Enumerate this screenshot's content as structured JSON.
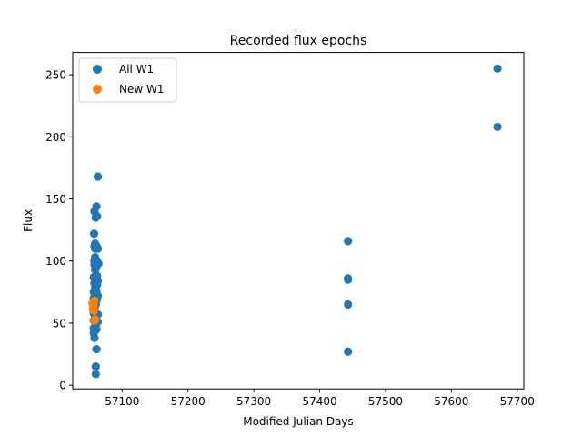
{
  "chart_data": {
    "type": "scatter",
    "title": "Recorded flux epochs",
    "xlabel": "Modified Julian Days",
    "ylabel": "Flux",
    "xlim": [
      57025,
      57710
    ],
    "ylim": [
      -3,
      268
    ],
    "xticks": [
      57100,
      57200,
      57300,
      57400,
      57500,
      57600,
      57700
    ],
    "yticks": [
      0,
      50,
      100,
      150,
      200,
      250
    ],
    "grid": false,
    "legend_position": "top-left",
    "series": [
      {
        "name": "All W1",
        "color": "#1f77b4",
        "points": [
          [
            57057,
            87
          ],
          [
            57057,
            75
          ],
          [
            57057,
            70
          ],
          [
            57057,
            64
          ],
          [
            57057,
            58
          ],
          [
            57057,
            52
          ],
          [
            57057,
            46
          ],
          [
            57057,
            42
          ],
          [
            57057.5,
            122
          ],
          [
            57058,
            140
          ],
          [
            57058,
            112
          ],
          [
            57058,
            100
          ],
          [
            57058,
            97
          ],
          [
            57058,
            82
          ],
          [
            57058,
            62
          ],
          [
            57058,
            38
          ],
          [
            57059,
            114
          ],
          [
            57059,
            110
          ],
          [
            57059,
            103
          ],
          [
            57059,
            93
          ],
          [
            57059,
            85
          ],
          [
            57059,
            78
          ],
          [
            57059,
            72
          ],
          [
            57059,
            55
          ],
          [
            57060,
            135
          ],
          [
            57060,
            99
          ],
          [
            57060,
            88
          ],
          [
            57060,
            75
          ],
          [
            57060,
            65
          ],
          [
            57060,
            48
          ],
          [
            57060,
            9
          ],
          [
            57060,
            15
          ],
          [
            57061,
            144
          ],
          [
            57061,
            112
          ],
          [
            57061,
            95
          ],
          [
            57061,
            83
          ],
          [
            57061,
            76
          ],
          [
            57061,
            68
          ],
          [
            57061,
            45
          ],
          [
            57061,
            29
          ],
          [
            57062,
            136
          ],
          [
            57062,
            111
          ],
          [
            57062,
            100
          ],
          [
            57062,
            88
          ],
          [
            57062,
            81
          ],
          [
            57062,
            70
          ],
          [
            57063,
            168
          ],
          [
            57063,
            110
          ],
          [
            57063,
            98
          ],
          [
            57063,
            84
          ],
          [
            57063,
            72
          ],
          [
            57063,
            57
          ],
          [
            57063,
            51
          ],
          [
            57064,
            98
          ],
          [
            57443,
            116
          ],
          [
            57443,
            86
          ],
          [
            57443,
            85
          ],
          [
            57443,
            65
          ],
          [
            57443,
            27
          ],
          [
            57670,
            255
          ],
          [
            57670,
            208
          ]
        ]
      },
      {
        "name": "New W1",
        "color": "#ff7f0e",
        "points": [
          [
            57055,
            66
          ],
          [
            57056,
            63
          ],
          [
            57056,
            61
          ],
          [
            57057,
            60
          ],
          [
            57057,
            64
          ],
          [
            57058,
            68
          ],
          [
            57058,
            52
          ],
          [
            57059,
            53
          ]
        ]
      }
    ]
  }
}
